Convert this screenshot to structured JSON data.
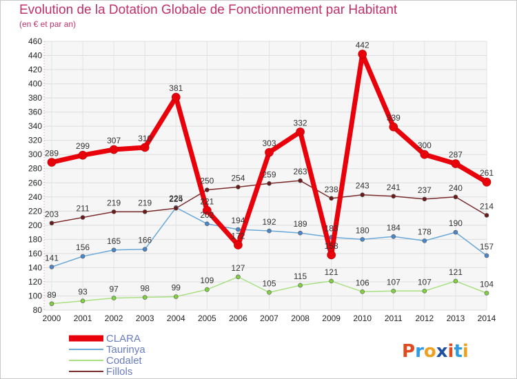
{
  "title": "Evolution de la Dotation Globale de Fonctionnement par Habitant",
  "subtitle": "(en € et par an)",
  "brand": {
    "text": "Proxiti",
    "letters": [
      "P",
      "r",
      "o",
      "x",
      "i",
      "t",
      "i"
    ],
    "colors": [
      "#e04a1f",
      "#2f9be0",
      "#f0a020",
      "#1f4fa0",
      "#e04a1f",
      "#2f9be0",
      "#f0a020"
    ]
  },
  "chart_data": {
    "type": "line",
    "x": [
      "2000",
      "2001",
      "2002",
      "2003",
      "2004",
      "2005",
      "2006",
      "2007",
      "2008",
      "2009",
      "2010",
      "2011",
      "2012",
      "2013",
      "2014"
    ],
    "ylim": [
      80,
      460
    ],
    "yticks": [
      80,
      100,
      120,
      140,
      160,
      180,
      200,
      220,
      240,
      260,
      280,
      300,
      320,
      340,
      360,
      380,
      400,
      420,
      440,
      460
    ],
    "grid": true,
    "legend_position": "bottom-left",
    "series": [
      {
        "name": "CLARA",
        "color": "#e8000a",
        "marker": "#e8000a",
        "width": 7,
        "labels": [
          "289",
          "299",
          "307",
          "310",
          "381",
          "221",
          "172",
          "303",
          "332",
          "158",
          "442",
          "339",
          "300",
          "287",
          "261"
        ],
        "values": [
          289,
          299,
          307,
          310,
          381,
          221,
          172,
          303,
          332,
          158,
          442,
          339,
          300,
          287,
          261
        ]
      },
      {
        "name": "Taurinya",
        "color": "#6aa8d8",
        "marker": "#4a86c8",
        "width": 1.5,
        "labels": [
          "141",
          "156",
          "165",
          "166",
          "225",
          "202",
          "194",
          "192",
          "189",
          "183",
          "180",
          "184",
          "178",
          "190",
          "157"
        ],
        "values": [
          141,
          156,
          165,
          166,
          225,
          202,
          194,
          192,
          189,
          183,
          180,
          184,
          178,
          190,
          157
        ]
      },
      {
        "name": "Codalet",
        "color": "#a8e080",
        "marker": "#80d040",
        "width": 1.5,
        "labels": [
          "89",
          "93",
          "97",
          "98",
          "99",
          "109",
          "127",
          "105",
          "115",
          "121",
          "106",
          "107",
          "107",
          "121",
          "104"
        ],
        "values": [
          89,
          93,
          97,
          98,
          99,
          109,
          127,
          105,
          115,
          121,
          106,
          107,
          107,
          121,
          104
        ]
      },
      {
        "name": "Fillols",
        "color": "#7a2a2a",
        "marker": "#6a1a1a",
        "width": 1.5,
        "labels": [
          "203",
          "211",
          "219",
          "219",
          "224",
          "250",
          "254",
          "259",
          "263",
          "238",
          "243",
          "241",
          "237",
          "240",
          "214"
        ],
        "values": [
          203,
          211,
          219,
          219,
          224,
          250,
          254,
          259,
          263,
          238,
          243,
          241,
          237,
          240,
          214
        ]
      }
    ]
  }
}
